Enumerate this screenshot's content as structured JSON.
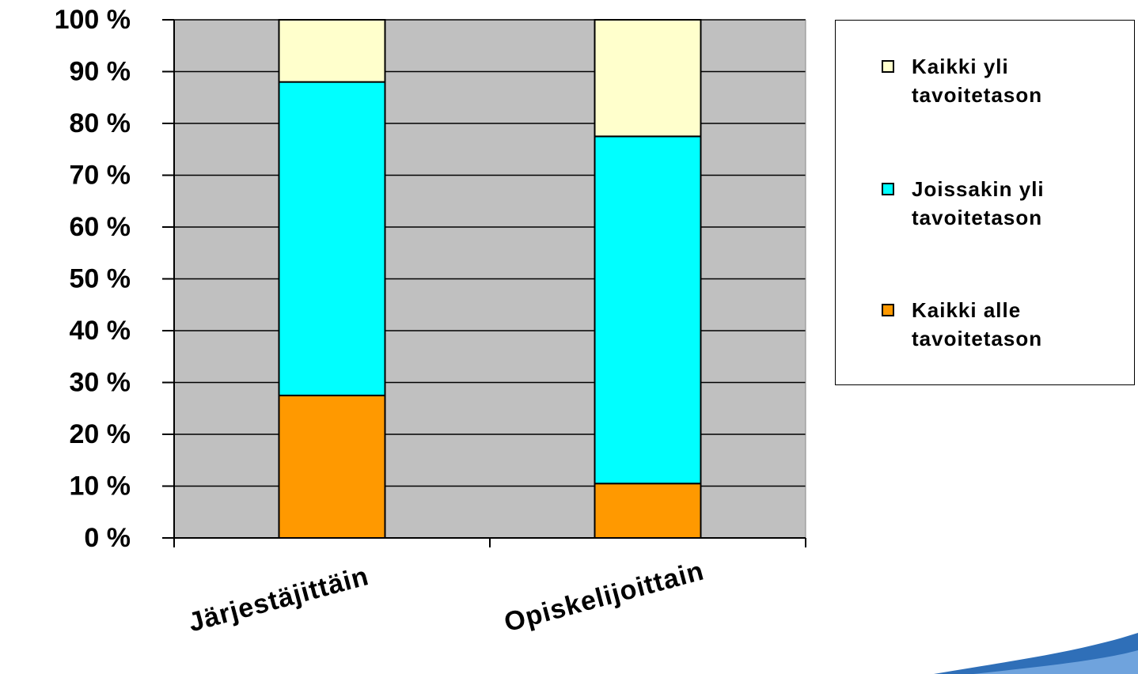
{
  "chart_data": {
    "type": "stacked_bar",
    "categories": [
      "Järjestäjittäin",
      "Opiskelijoittain"
    ],
    "series": [
      {
        "name": "Kaikki alle tavoitetason",
        "color": "#ff9900",
        "values": [
          27.5,
          10.5
        ]
      },
      {
        "name": "Joissakin yli tavoitetason",
        "color": "#00ffff",
        "values": [
          60.5,
          67
        ]
      },
      {
        "name": "Kaikki yli tavoitetason",
        "color": "#ffffcc",
        "values": [
          12,
          22.5
        ]
      }
    ],
    "ylim": [
      0,
      100
    ],
    "yticks": [
      {
        "value": 0,
        "label": "0 %"
      },
      {
        "value": 10,
        "label": "10 %"
      },
      {
        "value": 20,
        "label": "20 %"
      },
      {
        "value": 30,
        "label": "30 %"
      },
      {
        "value": 40,
        "label": "40 %"
      },
      {
        "value": 50,
        "label": "50 %"
      },
      {
        "value": 60,
        "label": "60 %"
      },
      {
        "value": 70,
        "label": "70 %"
      },
      {
        "value": 80,
        "label": "80 %"
      },
      {
        "value": 90,
        "label": "90 %"
      },
      {
        "value": 100,
        "label": "100 %"
      }
    ],
    "grid": true,
    "plot_background": "#c0c0c0",
    "legend": "right"
  }
}
